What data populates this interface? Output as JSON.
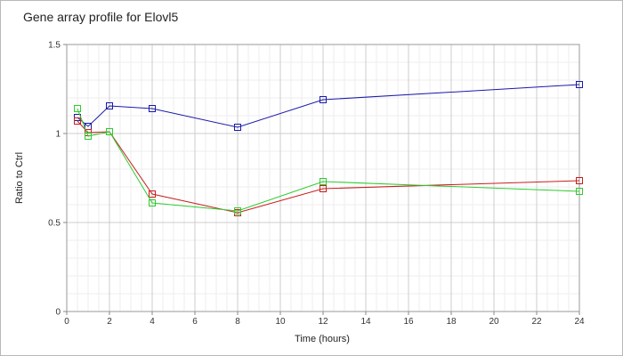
{
  "chart_data": {
    "type": "line",
    "title": "Gene array profile for Elovl5",
    "xlabel": "Time (hours)",
    "ylabel": "Ratio to Ctrl",
    "xlim": [
      0,
      24
    ],
    "ylim": [
      0,
      1.5
    ],
    "x_ticks": [
      0,
      2,
      4,
      6,
      8,
      10,
      12,
      14,
      16,
      18,
      20,
      22,
      24
    ],
    "y_ticks": [
      0,
      0.5,
      1,
      1.5
    ],
    "x_tick_labels": [
      "0",
      "2",
      "4",
      "6",
      "8",
      "10",
      "12",
      "14",
      "16",
      "18",
      "20",
      "22",
      "24"
    ],
    "y_tick_labels": [
      "0",
      "0.5",
      "1",
      "1.5"
    ],
    "grid": true,
    "minor_grid": true,
    "legend": "none",
    "x": [
      0.5,
      1,
      2,
      4,
      8,
      12,
      24
    ],
    "series": [
      {
        "color": "#1a1aaa",
        "marker": "square",
        "values": [
          1.09,
          1.04,
          1.155,
          1.14,
          1.035,
          1.19,
          1.275
        ]
      },
      {
        "color": "#c81e1e",
        "marker": "square",
        "values": [
          1.07,
          1.005,
          1.01,
          0.66,
          0.555,
          0.69,
          0.735
        ]
      },
      {
        "color": "#2ecc2e",
        "marker": "square",
        "values": [
          1.14,
          0.985,
          1.01,
          0.61,
          0.565,
          0.73,
          0.675
        ]
      }
    ]
  }
}
